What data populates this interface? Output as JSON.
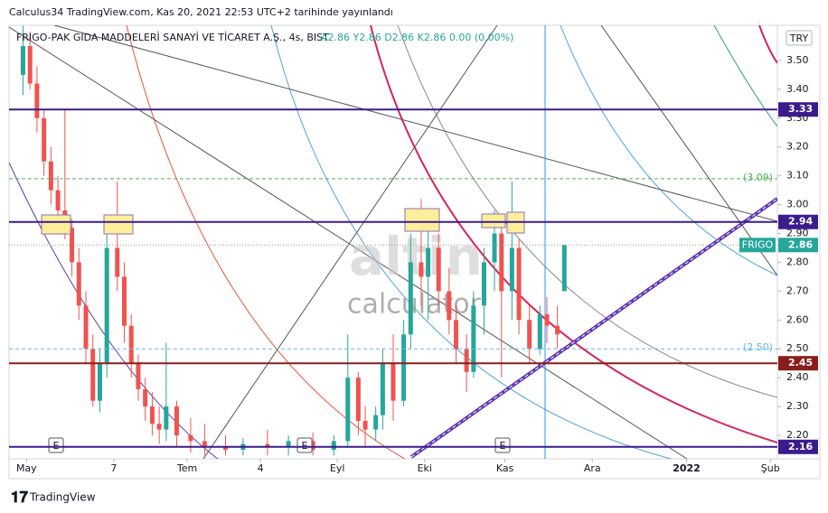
{
  "header": "Calculus34 TradingView.com, Kas 20, 2021 22:53 UTC+2 tarihinde yayınlandı",
  "watermark": [
    "altin",
    "calculator"
  ],
  "footer": "TradingView",
  "events": [
    "E",
    "E",
    "E"
  ],
  "chart_data": {
    "type": "candlestick",
    "title": "FRIGO-PAK GIDA MADDELERİ SANAYİ VE TİCARET A.Ş., 4s, BIST",
    "quote": "A2.86  Y2.86  D2.86  K2.86  0.00 (0.00%)",
    "currency": "TRY",
    "colors": {
      "up": "#26a69a",
      "down": "#ef5350"
    },
    "x": [
      4,
      6,
      8,
      10,
      12,
      14,
      16,
      18,
      20,
      22,
      24,
      26,
      28,
      31,
      33,
      35,
      37,
      39,
      41,
      43,
      45,
      48,
      52,
      56,
      62,
      67,
      74,
      80,
      87,
      93,
      97,
      100,
      102,
      105,
      107,
      110,
      113,
      115,
      118,
      120,
      123,
      126,
      128,
      131,
      133,
      136,
      139,
      141,
      144,
      146,
      149,
      152,
      154,
      157,
      159
    ],
    "open": [
      3.45,
      3.55,
      3.42,
      3.3,
      3.15,
      3.05,
      2.98,
      2.92,
      2.8,
      2.65,
      2.5,
      2.32,
      2.45,
      2.85,
      2.75,
      2.58,
      2.45,
      2.36,
      2.3,
      2.24,
      2.22,
      2.3,
      2.2,
      2.18,
      2.16,
      2.15,
      2.17,
      2.16,
      2.18,
      2.15,
      2.18,
      2.4,
      2.25,
      2.22,
      2.27,
      2.45,
      2.32,
      2.55,
      2.8,
      2.75,
      2.85,
      2.7,
      2.6,
      2.5,
      2.42,
      2.65,
      2.8,
      2.9,
      2.7,
      2.85,
      2.6,
      2.5,
      2.62,
      2.58,
      2.7
    ],
    "high": [
      3.62,
      3.6,
      3.48,
      3.33,
      3.2,
      3.1,
      3.33,
      2.95,
      2.85,
      2.7,
      2.55,
      2.5,
      2.9,
      3.08,
      2.8,
      2.62,
      2.48,
      2.4,
      2.35,
      2.3,
      2.52,
      2.32,
      2.26,
      2.24,
      2.2,
      2.19,
      2.22,
      2.2,
      2.21,
      2.2,
      2.55,
      2.42,
      2.3,
      2.3,
      2.5,
      2.55,
      2.6,
      2.9,
      3.02,
      2.95,
      2.9,
      2.78,
      2.65,
      2.55,
      2.7,
      2.85,
      2.98,
      2.95,
      3.08,
      2.88,
      2.65,
      2.65,
      2.68,
      2.65,
      2.86
    ],
    "low": [
      3.38,
      3.4,
      3.25,
      3.1,
      3.0,
      2.92,
      2.88,
      2.75,
      2.6,
      2.45,
      2.3,
      2.28,
      2.4,
      2.7,
      2.52,
      2.4,
      2.32,
      2.25,
      2.2,
      2.17,
      2.18,
      2.16,
      2.14,
      2.13,
      2.13,
      2.13,
      2.13,
      2.13,
      2.13,
      2.13,
      2.16,
      2.2,
      2.16,
      2.18,
      2.22,
      2.25,
      2.3,
      2.5,
      2.65,
      2.6,
      2.65,
      2.55,
      2.45,
      2.35,
      2.4,
      2.55,
      2.7,
      2.4,
      2.6,
      2.55,
      2.45,
      2.48,
      2.52,
      2.5,
      2.7
    ],
    "close": [
      3.55,
      3.42,
      3.3,
      3.15,
      3.05,
      2.98,
      2.92,
      2.8,
      2.65,
      2.5,
      2.32,
      2.45,
      2.85,
      2.75,
      2.58,
      2.45,
      2.36,
      2.3,
      2.24,
      2.22,
      2.3,
      2.2,
      2.18,
      2.16,
      2.15,
      2.17,
      2.16,
      2.18,
      2.15,
      2.18,
      2.4,
      2.25,
      2.22,
      2.27,
      2.45,
      2.32,
      2.55,
      2.8,
      2.75,
      2.85,
      2.7,
      2.6,
      2.5,
      2.42,
      2.65,
      2.8,
      2.9,
      2.7,
      2.85,
      2.6,
      2.5,
      2.62,
      2.58,
      2.55,
      2.86
    ],
    "xlim": [
      0,
      220
    ],
    "xticks": [
      {
        "value": 5,
        "label": "May"
      },
      {
        "value": 30,
        "label": "7"
      },
      {
        "value": 51,
        "label": "Tem"
      },
      {
        "value": 72,
        "label": "4"
      },
      {
        "value": 94,
        "label": "Eyl"
      },
      {
        "value": 119,
        "label": "Eki"
      },
      {
        "value": 142,
        "label": "Kas"
      },
      {
        "value": 167,
        "label": "Ara"
      },
      {
        "value": 194,
        "label": "2022"
      },
      {
        "value": 218,
        "label": "Şub"
      }
    ],
    "ylim": [
      2.128,
      3.622
    ],
    "yticks": [
      {
        "value": 2.2,
        "label": "2.20"
      },
      {
        "value": 2.3,
        "label": "2.30"
      },
      {
        "value": 2.4,
        "label": "2.40"
      },
      {
        "value": 2.5,
        "label": "2.50"
      },
      {
        "value": 2.6,
        "label": "2.60"
      },
      {
        "value": 2.7,
        "label": "2.70"
      },
      {
        "value": 2.8,
        "label": "2.80"
      },
      {
        "value": 2.9,
        "label": "2.90"
      },
      {
        "value": 3.0,
        "label": "3.00"
      },
      {
        "value": 3.1,
        "label": "3.10"
      },
      {
        "value": 3.2,
        "label": "3.20"
      },
      {
        "value": 3.3,
        "label": "3.30"
      },
      {
        "value": 3.4,
        "label": "3.40"
      },
      {
        "value": 3.5,
        "label": "3.50"
      }
    ],
    "grid": false,
    "levels": [
      {
        "value": 3.33,
        "color": "#3b1c8c"
      },
      {
        "value": 2.94,
        "color": "#3b1c8c"
      },
      {
        "value": 2.45,
        "color": "#8b1c1c"
      },
      {
        "value": 2.16,
        "color": "#3b1c8c"
      }
    ],
    "dashed_levels": [
      {
        "value": 3.09,
        "label": "(3.09)",
        "color": "#4caf50"
      },
      {
        "value": 2.5,
        "label": "(2.50)",
        "color": "#64b5f6"
      }
    ],
    "last": {
      "name": "FRIGO",
      "value": 2.86,
      "color": "#26a69a"
    }
  }
}
